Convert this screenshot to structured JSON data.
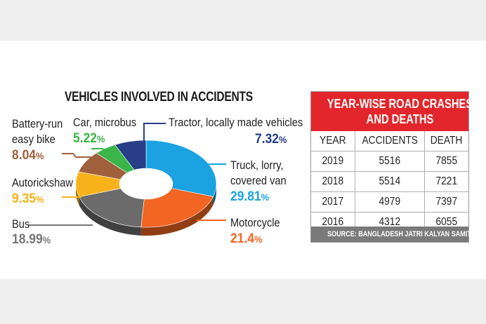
{
  "chart_data": [
    {
      "type": "pie",
      "title": "VEHICLES INVOLVED IN ACCIDENTS",
      "slices": [
        {
          "label": "Truck, lorry, covered van",
          "value": 29.81,
          "display": "29.81",
          "color": "#1aa3e0"
        },
        {
          "label": "Motorcycle",
          "value": 21.4,
          "display": "21.4",
          "color": "#f26522"
        },
        {
          "label": "Bus",
          "value": 18.99,
          "display": "18.99",
          "color": "#6b6b6b"
        },
        {
          "label": "Autorickshaw",
          "value": 9.35,
          "display": "9.35",
          "color": "#f7b21b"
        },
        {
          "label": "Battery-run easy bike",
          "value": 8.04,
          "display": "8.04",
          "color": "#a0603c"
        },
        {
          "label": "Car, microbus",
          "value": 5.22,
          "display": "5.22",
          "color": "#3bb54a"
        },
        {
          "label": "Tractor, locally made vehicles",
          "value": 7.32,
          "display": "7.32",
          "color": "#263f86"
        }
      ],
      "unit_symbol": "%"
    },
    {
      "type": "table",
      "title_line1": "YEAR-WISE ROAD CRASHES",
      "title_line2": "AND DEATHS",
      "columns": [
        "YEAR",
        "ACCIDENTS",
        "DEATH"
      ],
      "rows": [
        [
          "2019",
          "5516",
          "7855"
        ],
        [
          "2018",
          "5514",
          "7221"
        ],
        [
          "2017",
          "4979",
          "7397"
        ],
        [
          "2016",
          "4312",
          "6055"
        ]
      ],
      "source": "SOURCE: BANGLADESH JATRI KALYAN SAMITY",
      "header_color": "#e3262b",
      "source_color": "#7a7a7a"
    }
  ],
  "labels": {
    "truck_line1": "Truck, lorry,",
    "truck_line2": "covered van",
    "motorcycle": "Motorcycle",
    "bus": "Bus",
    "auto": "Autorickshaw",
    "battery_line1": "Battery-run",
    "battery_line2": "easy bike",
    "car": "Car, microbus",
    "tractor": "Tractor, locally made vehicles"
  }
}
